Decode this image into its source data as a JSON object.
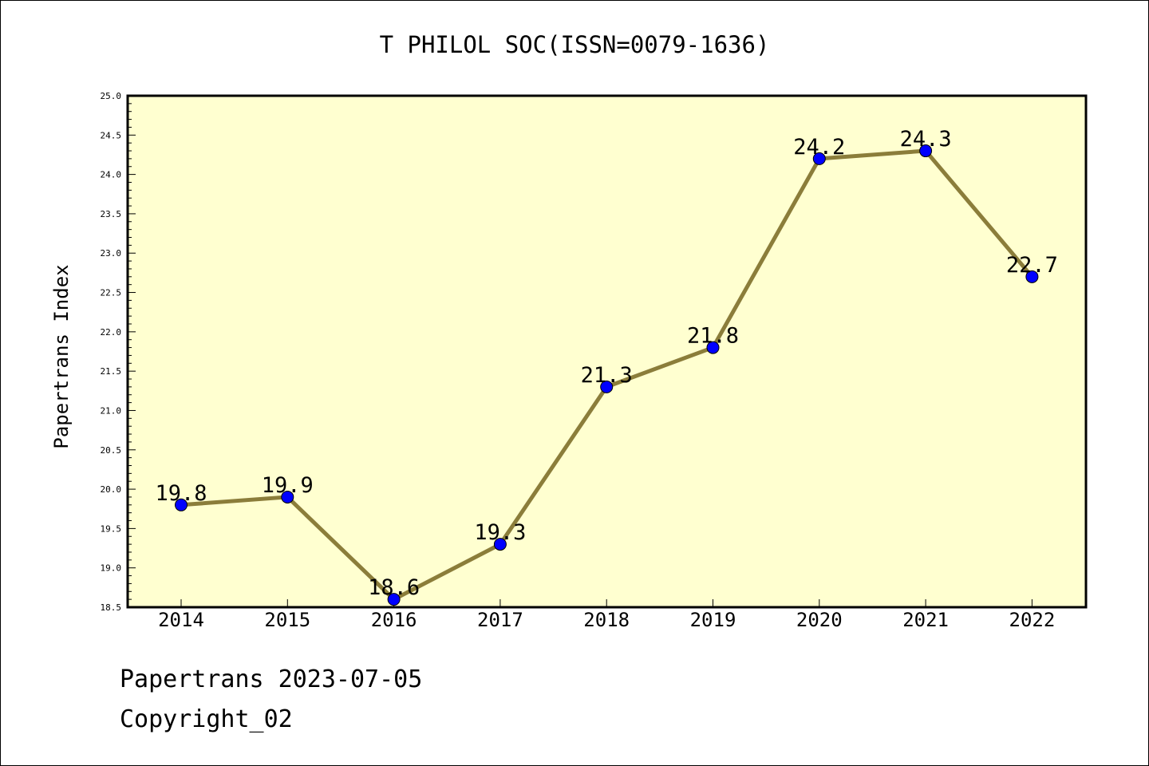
{
  "chart_data": {
    "type": "line",
    "title": "T PHILOL SOC(ISSN=0079-1636)",
    "xlabel": "",
    "ylabel": "Papertrans Index",
    "categories": [
      "2014",
      "2015",
      "2016",
      "2017",
      "2018",
      "2019",
      "2020",
      "2021",
      "2022"
    ],
    "series": [
      {
        "values": [
          19.8,
          19.9,
          18.6,
          19.3,
          21.3,
          21.8,
          24.2,
          24.3,
          22.7
        ],
        "data_labels": [
          "19.8",
          "19.9",
          "18.6",
          "19.3",
          "21.3",
          "21.8",
          "24.2",
          "24.3",
          "22.7"
        ]
      }
    ],
    "ylim": [
      18.5,
      25.0
    ],
    "yticks": [
      "18.5",
      "19.0",
      "19.5",
      "20.0",
      "20.5",
      "21.0",
      "21.5",
      "22.0",
      "22.5",
      "23.0",
      "23.5",
      "24.0",
      "24.5",
      "25.0"
    ],
    "grid": false,
    "legend": "none",
    "colors": {
      "plot_background": "#ffffd0",
      "line": "#8b7d3a",
      "marker": "#0000ff"
    }
  },
  "footer": {
    "date_line": "Papertrans 2023-07-05",
    "copyright": "Copyright_02"
  }
}
